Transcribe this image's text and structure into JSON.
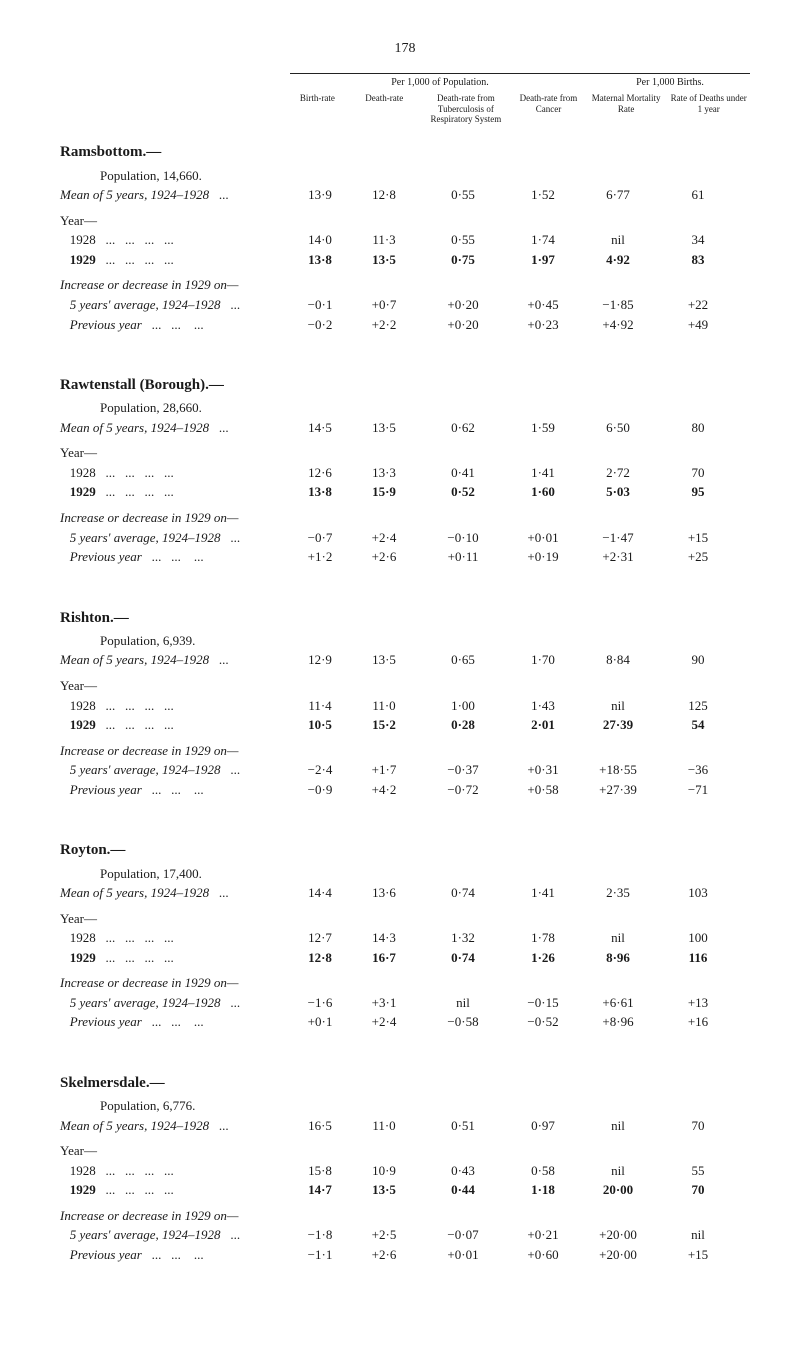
{
  "page_number": "178",
  "header": {
    "pop_label": "Per 1,000 of Population.",
    "bir_label": "Per 1,000 Births.",
    "cols": {
      "c1": "Birth-rate",
      "c2": "Death-rate",
      "c3": "Death-rate\nfrom\nTuberculosis of\nRespiratory\nSystem",
      "c4": "Death-rate\nfrom\nCancer",
      "c5": "Maternal\nMortality\nRate",
      "c6": "Rate of\nDeaths\nunder 1 year"
    }
  },
  "row_labels": {
    "mean": "Mean of 5 years, 1924–1928",
    "year_head": "Year—",
    "y1928": "1928",
    "y1929": "1929",
    "inc_head": "Increase or decrease in 1929 on—",
    "avg5": "5 years' average, 1924–1928",
    "prev": "Previous year",
    "pop_prefix": "Population, "
  },
  "sections": [
    {
      "title": "Ramsbottom.—",
      "population": "14,660.",
      "mean": [
        "13·9",
        "12·8",
        "0·55",
        "1·52",
        "6·77",
        "61"
      ],
      "y1928": [
        "14·0",
        "11·3",
        "0·55",
        "1·74",
        "nil",
        "34"
      ],
      "y1929": [
        "13·8",
        "13·5",
        "0·75",
        "1·97",
        "4·92",
        "83"
      ],
      "avg5": [
        "−0·1",
        "+0·7",
        "+0·20",
        "+0·45",
        "−1·85",
        "+22"
      ],
      "prev": [
        "−0·2",
        "+2·2",
        "+0·20",
        "+0·23",
        "+4·92",
        "+49"
      ]
    },
    {
      "title": "Rawtenstall (Borough).—",
      "population": "28,660.",
      "mean": [
        "14·5",
        "13·5",
        "0·62",
        "1·59",
        "6·50",
        "80"
      ],
      "y1928": [
        "12·6",
        "13·3",
        "0·41",
        "1·41",
        "2·72",
        "70"
      ],
      "y1929": [
        "13·8",
        "15·9",
        "0·52",
        "1·60",
        "5·03",
        "95"
      ],
      "avg5": [
        "−0·7",
        "+2·4",
        "−0·10",
        "+0·01",
        "−1·47",
        "+15"
      ],
      "prev": [
        "+1·2",
        "+2·6",
        "+0·11",
        "+0·19",
        "+2·31",
        "+25"
      ]
    },
    {
      "title": "Rishton.—",
      "population": "6,939.",
      "mean": [
        "12·9",
        "13·5",
        "0·65",
        "1·70",
        "8·84",
        "90"
      ],
      "y1928": [
        "11·4",
        "11·0",
        "1·00",
        "1·43",
        "nil",
        "125"
      ],
      "y1929": [
        "10·5",
        "15·2",
        "0·28",
        "2·01",
        "27·39",
        "54"
      ],
      "avg5": [
        "−2·4",
        "+1·7",
        "−0·37",
        "+0·31",
        "+18·55",
        "−36"
      ],
      "prev": [
        "−0·9",
        "+4·2",
        "−0·72",
        "+0·58",
        "+27·39",
        "−71"
      ]
    },
    {
      "title": "Royton.—",
      "population": "17,400.",
      "mean": [
        "14·4",
        "13·6",
        "0·74",
        "1·41",
        "2·35",
        "103"
      ],
      "y1928": [
        "12·7",
        "14·3",
        "1·32",
        "1·78",
        "nil",
        "100"
      ],
      "y1929": [
        "12·8",
        "16·7",
        "0·74",
        "1·26",
        "8·96",
        "116"
      ],
      "avg5": [
        "−1·6",
        "+3·1",
        "nil",
        "−0·15",
        "+6·61",
        "+13"
      ],
      "prev": [
        "+0·1",
        "+2·4",
        "−0·58",
        "−0·52",
        "+8·96",
        "+16"
      ]
    },
    {
      "title": "Skelmersdale.—",
      "population": "6,776.",
      "mean": [
        "16·5",
        "11·0",
        "0·51",
        "0·97",
        "nil",
        "70"
      ],
      "y1928": [
        "15·8",
        "10·9",
        "0·43",
        "0·58",
        "nil",
        "55"
      ],
      "y1929": [
        "14·7",
        "13·5",
        "0·44",
        "1·18",
        "20·00",
        "70"
      ],
      "avg5": [
        "−1·8",
        "+2·5",
        "−0·07",
        "+0·21",
        "+20·00",
        "nil"
      ],
      "prev": [
        "−1·1",
        "+2·6",
        "+0·01",
        "+0·60",
        "+20·00",
        "+15"
      ]
    }
  ]
}
